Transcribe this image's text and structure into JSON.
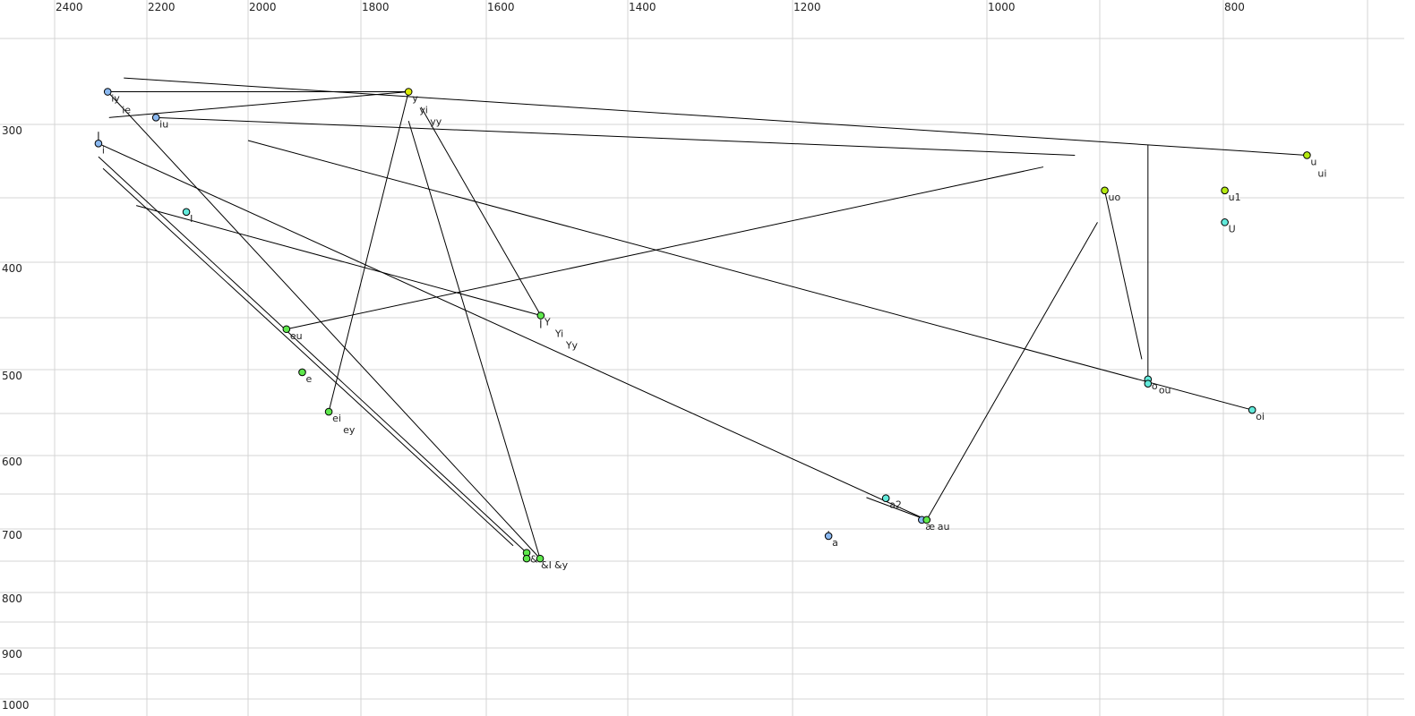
{
  "chart_data": {
    "type": "scatter",
    "title": "",
    "xlabel": "",
    "ylabel": "",
    "x_axis": {
      "reversed": true,
      "scale": "nonlinear",
      "range": [
        2400,
        700
      ],
      "tick_labels": [
        "2400",
        "2200",
        "2000",
        "1800",
        "1600",
        "1400",
        "1200",
        "1000",
        "800"
      ]
    },
    "y_axis": {
      "reversed": true,
      "scale": "nonlinear",
      "range": [
        250,
        1000
      ],
      "tick_labels": [
        "300",
        "400",
        "500",
        "600",
        "700",
        "800",
        "900",
        "1000"
      ]
    },
    "grid": true,
    "colors": {
      "blue": "#8ab8f0",
      "cyan": "#62eadb",
      "green": "#5ee84c",
      "yellow": "#dcec00",
      "lime": "#b4ea10",
      "grid": "#d4d4d4",
      "line": "#000000"
    },
    "points": [
      {
        "x": 2285,
        "y": 281,
        "color": "blue",
        "labels": [
          "iy",
          "ie"
        ]
      },
      {
        "x": 2182,
        "y": 296,
        "color": "blue",
        "labels": [
          "iu"
        ]
      },
      {
        "x": 2305,
        "y": 313,
        "color": "blue",
        "labels": [
          "i"
        ]
      },
      {
        "x": 2122,
        "y": 361,
        "color": "cyan",
        "labels": [
          "I"
        ]
      },
      {
        "x": 1724,
        "y": 281,
        "color": "yellow",
        "labels": [
          "y",
          "yi",
          "yy"
        ]
      },
      {
        "x": 1523,
        "y": 448,
        "color": "green",
        "labels": [
          "Y",
          "Yi",
          "Yy"
        ]
      },
      {
        "x": 1932,
        "y": 461,
        "color": "green",
        "labels": [
          "eu"
        ]
      },
      {
        "x": 1904,
        "y": 503,
        "color": "green",
        "labels": [
          "e"
        ]
      },
      {
        "x": 1857,
        "y": 548,
        "color": "green",
        "labels": [
          "ei",
          "ey"
        ]
      },
      {
        "x": 1543,
        "y": 737,
        "color": "green",
        "labels": [
          "&"
        ]
      },
      {
        "x": 1543,
        "y": 746,
        "color": "green",
        "labels": [
          "&I"
        ]
      },
      {
        "x": 1524,
        "y": 746,
        "color": "green",
        "labels": [
          "&y"
        ]
      },
      {
        "x": 1104,
        "y": 656,
        "color": "cyan",
        "labels": [
          "a2"
        ]
      },
      {
        "x": 1067,
        "y": 687,
        "color": "blue",
        "labels": [
          "æ"
        ]
      },
      {
        "x": 1062,
        "y": 687,
        "color": "green",
        "labels": [
          "au"
        ]
      },
      {
        "x": 1163,
        "y": 711,
        "color": "blue",
        "labels": [
          "a"
        ]
      },
      {
        "x": 896,
        "y": 345,
        "color": "lime",
        "labels": [
          "uo"
        ]
      },
      {
        "x": 742,
        "y": 321,
        "color": "lime",
        "labels": [
          "u",
          "ui"
        ]
      },
      {
        "x": 799,
        "y": 345,
        "color": "lime",
        "labels": [
          "u1"
        ]
      },
      {
        "x": 799,
        "y": 369,
        "color": "cyan",
        "labels": [
          "U"
        ]
      },
      {
        "x": 861,
        "y": 511,
        "color": "cyan",
        "labels": [
          "o"
        ]
      },
      {
        "x": 861,
        "y": 516,
        "color": "cyan",
        "labels": [
          "ou"
        ]
      },
      {
        "x": 780,
        "y": 546,
        "color": "cyan",
        "labels": [
          "oi"
        ]
      }
    ],
    "segments": [
      [
        [
          2250,
          273
        ],
        [
          742,
          321
        ]
      ],
      [
        [
          2285,
          281
        ],
        [
          1724,
          281
        ]
      ],
      [
        [
          2282,
          296
        ],
        [
          1724,
          281
        ]
      ],
      [
        [
          2182,
          296
        ],
        [
          922,
          321
        ]
      ],
      [
        [
          2000,
          311
        ],
        [
          780,
          546
        ]
      ],
      [
        [
          2305,
          313
        ],
        [
          1062,
          687
        ]
      ],
      [
        [
          2305,
          322
        ],
        [
          1543,
          737
        ]
      ],
      [
        [
          2295,
          330
        ],
        [
          1562,
          726
        ]
      ],
      [
        [
          2285,
          281
        ],
        [
          1524,
          746
        ]
      ],
      [
        [
          2223,
          356
        ],
        [
          1523,
          448
        ]
      ],
      [
        [
          1724,
          281
        ],
        [
          1857,
          548
        ]
      ],
      [
        [
          1724,
          298
        ],
        [
          1524,
          746
        ]
      ],
      [
        [
          1704,
          290
        ],
        [
          1523,
          448
        ]
      ],
      [
        [
          1932,
          461
        ],
        [
          950,
          329
        ]
      ],
      [
        [
          1124,
          655
        ],
        [
          1062,
          687
        ]
      ],
      [
        [
          1062,
          687
        ],
        [
          902,
          369
        ]
      ],
      [
        [
          896,
          345
        ],
        [
          866,
          490
        ]
      ],
      [
        [
          861,
          314
        ],
        [
          861,
          511
        ]
      ],
      [
        [
          2305,
          305
        ],
        [
          2305,
          313
        ]
      ],
      [
        [
          1163,
          703
        ],
        [
          1163,
          711
        ]
      ],
      [
        [
          1523,
          452
        ],
        [
          1523,
          460
        ]
      ]
    ]
  }
}
